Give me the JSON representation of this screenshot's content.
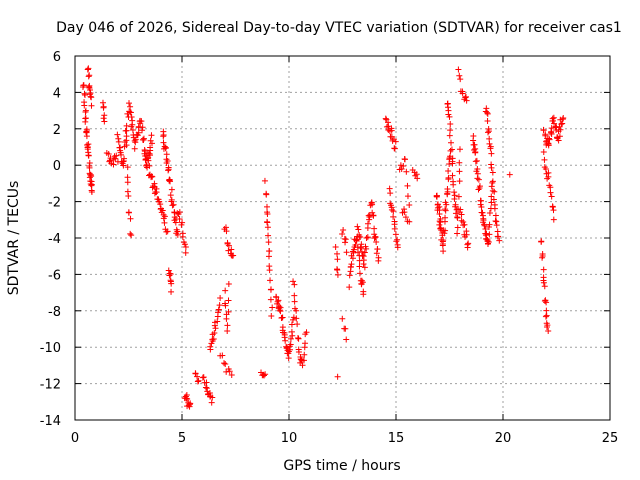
{
  "chart_data": {
    "type": "scatter",
    "title": "Day 046 of 2026, Sidereal Day-to-day VTEC variation (SDTVAR) for receiver cas1",
    "xlabel": "GPS time / hours",
    "ylabel": "SDTVAR / TECUs",
    "xlim": [
      0,
      25
    ],
    "ylim": [
      -14,
      6
    ],
    "xticks": [
      0,
      5,
      10,
      15,
      20,
      25
    ],
    "yticks": [
      -14,
      -12,
      -10,
      -8,
      -6,
      -4,
      -2,
      0,
      2,
      4,
      6
    ],
    "grid": true,
    "marker": "+",
    "color": "#ff0000",
    "segments": [
      {
        "x0": 0.4,
        "x1": 0.8,
        "y": [
          4.5,
          2.0,
          0.0,
          -1.5
        ],
        "n": 40
      },
      {
        "x0": 0.6,
        "x1": 0.75,
        "y": [
          5.4,
          4.2,
          3.5
        ],
        "n": 14
      },
      {
        "x0": 1.3,
        "x1": 1.4,
        "y": [
          3.2,
          2.6
        ],
        "n": 6
      },
      {
        "x0": 1.5,
        "x1": 2.0,
        "y": [
          0.5,
          0.2,
          0.4
        ],
        "n": 12
      },
      {
        "x0": 2.0,
        "x1": 3.6,
        "y": [
          1.5,
          0.0,
          3.5,
          1.0,
          2.5,
          0.0,
          1.5
        ],
        "n": 70
      },
      {
        "x0": 2.4,
        "x1": 2.6,
        "y": [
          1.5,
          -1.0,
          -2.5,
          -4.0
        ],
        "n": 12
      },
      {
        "x0": 3.3,
        "x1": 4.3,
        "y": [
          0.5,
          -1.0,
          -2.0,
          -3.5
        ],
        "n": 35
      },
      {
        "x0": 4.1,
        "x1": 4.8,
        "y": [
          1.8,
          0.5,
          -1.0,
          -2.5,
          -4.0
        ],
        "n": 35
      },
      {
        "x0": 4.4,
        "x1": 4.5,
        "y": [
          -5.5,
          -6.8
        ],
        "n": 8
      },
      {
        "x0": 4.8,
        "x1": 5.2,
        "y": [
          -2.5,
          -3.5,
          -5.0
        ],
        "n": 12
      },
      {
        "x0": 5.1,
        "x1": 5.4,
        "y": [
          -12.5,
          -13.3
        ],
        "n": 12
      },
      {
        "x0": 5.6,
        "x1": 5.8,
        "y": [
          -11.5,
          -11.8
        ],
        "n": 5
      },
      {
        "x0": 6.0,
        "x1": 6.4,
        "y": [
          -11.5,
          -12.5,
          -13.0
        ],
        "n": 14
      },
      {
        "x0": 6.3,
        "x1": 6.8,
        "y": [
          -10.0,
          -9.0,
          -7.5
        ],
        "n": 18
      },
      {
        "x0": 6.8,
        "x1": 7.3,
        "y": [
          -10.5,
          -11.5
        ],
        "n": 8
      },
      {
        "x0": 7.0,
        "x1": 7.2,
        "y": [
          -7.0,
          -8.0,
          -9.0,
          -6.5
        ],
        "n": 10
      },
      {
        "x0": 7.0,
        "x1": 7.4,
        "y": [
          -3.5,
          -4.5,
          -5.0
        ],
        "n": 12
      },
      {
        "x0": 8.7,
        "x1": 8.9,
        "y": [
          -11.5,
          -11.7
        ],
        "n": 5
      },
      {
        "x0": 8.9,
        "x1": 9.2,
        "y": [
          -1.0,
          -2.5,
          -3.5,
          -5.0,
          -6.5,
          -8.0
        ],
        "n": 22
      },
      {
        "x0": 9.4,
        "x1": 10.2,
        "y": [
          -7.0,
          -8.0,
          -9.5,
          -10.5,
          -8.5
        ],
        "n": 38
      },
      {
        "x0": 10.2,
        "x1": 10.8,
        "y": [
          -6.5,
          -8.5,
          -10.5,
          -11.0,
          -9.0
        ],
        "n": 24
      },
      {
        "x0": 12.2,
        "x1": 12.3,
        "y": [
          -4.5,
          -5.5,
          -6.0
        ],
        "n": 6
      },
      {
        "x0": 12.3,
        "x1": 12.35,
        "y": [
          -11.4
        ],
        "n": 1
      },
      {
        "x0": 12.5,
        "x1": 12.7,
        "y": [
          -3.5,
          -4.5
        ],
        "n": 6
      },
      {
        "x0": 12.5,
        "x1": 12.7,
        "y": [
          -8.5,
          -9.5
        ],
        "n": 4
      },
      {
        "x0": 12.8,
        "x1": 13.5,
        "y": [
          -6.5,
          -5.0,
          -4.0,
          -6.0,
          -7.0
        ],
        "n": 30
      },
      {
        "x0": 13.2,
        "x1": 14.2,
        "y": [
          -3.5,
          -4.5,
          -5.5,
          -3.0,
          -2.0,
          -4.0,
          -5.0
        ],
        "n": 45
      },
      {
        "x0": 14.5,
        "x1": 15.0,
        "y": [
          2.5,
          1.8,
          1.0
        ],
        "n": 16
      },
      {
        "x0": 14.7,
        "x1": 15.1,
        "y": [
          -1.5,
          -2.5,
          -3.5,
          -4.5
        ],
        "n": 16
      },
      {
        "x0": 15.2,
        "x1": 15.6,
        "y": [
          -0.5,
          0.5,
          -2.0
        ],
        "n": 10
      },
      {
        "x0": 15.3,
        "x1": 15.6,
        "y": [
          -2.5,
          -3.0
        ],
        "n": 6
      },
      {
        "x0": 15.8,
        "x1": 16.0,
        "y": [
          -0.4,
          -0.6
        ],
        "n": 5
      },
      {
        "x0": 16.9,
        "x1": 17.5,
        "y": [
          -1.5,
          -3.0,
          -4.5,
          -2.0,
          0.5
        ],
        "n": 45
      },
      {
        "x0": 17.4,
        "x1": 18.0,
        "y": [
          3.5,
          2.0,
          0.0,
          -2.0,
          -3.5,
          1.0
        ],
        "n": 35
      },
      {
        "x0": 17.9,
        "x1": 18.3,
        "y": [
          5.0,
          4.0,
          3.5
        ],
        "n": 10
      },
      {
        "x0": 18.0,
        "x1": 18.4,
        "y": [
          -2.5,
          -3.5,
          -4.5
        ],
        "n": 14
      },
      {
        "x0": 18.6,
        "x1": 19.5,
        "y": [
          1.5,
          0.0,
          -2.0,
          -3.5,
          -4.5,
          -1.0
        ],
        "n": 50
      },
      {
        "x0": 19.2,
        "x1": 19.8,
        "y": [
          3.2,
          2.0,
          0.5,
          -1.5,
          -3.0,
          -4.0
        ],
        "n": 30
      },
      {
        "x0": 20.3,
        "x1": 20.4,
        "y": [
          -0.7
        ],
        "n": 1
      },
      {
        "x0": 21.8,
        "x1": 22.1,
        "y": [
          -4.0,
          -6.0,
          -8.0,
          -9.0
        ],
        "n": 20
      },
      {
        "x0": 21.9,
        "x1": 22.4,
        "y": [
          0.5,
          -0.5,
          -1.5,
          -3.0
        ],
        "n": 16
      },
      {
        "x0": 21.9,
        "x1": 22.8,
        "y": [
          2.0,
          1.0,
          2.5,
          1.5,
          2.8
        ],
        "n": 40
      }
    ]
  }
}
